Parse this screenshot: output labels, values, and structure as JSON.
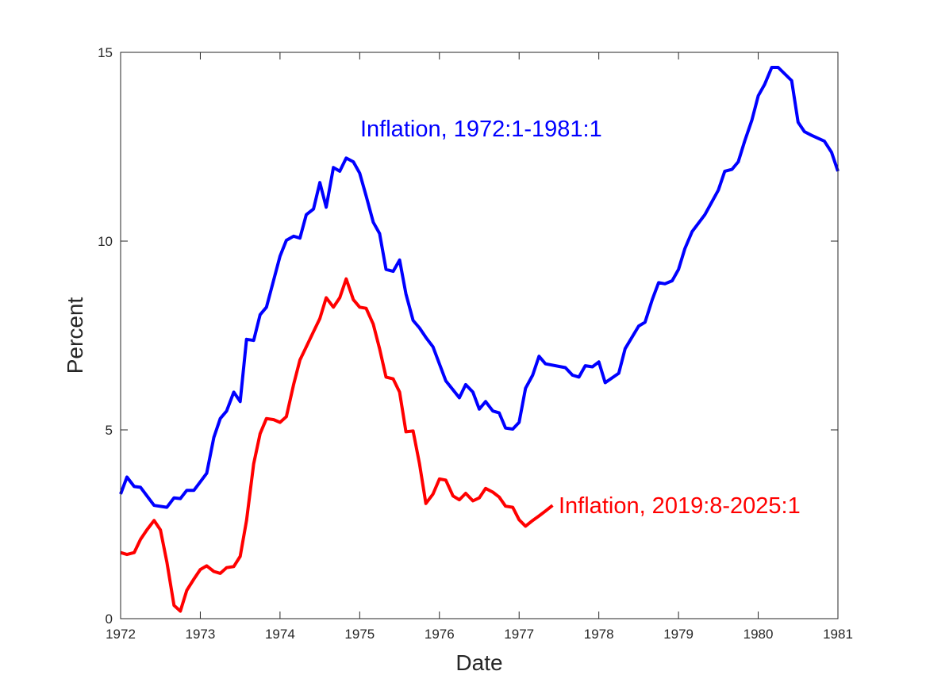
{
  "chart_data": {
    "type": "line",
    "xlabel": "Date",
    "ylabel": "Percent",
    "xlim": [
      1972,
      1981
    ],
    "ylim": [
      0,
      15
    ],
    "xticks": [
      "1972",
      "1973",
      "1974",
      "1975",
      "1976",
      "1977",
      "1978",
      "1979",
      "1980",
      "1981"
    ],
    "yticks": [
      "0",
      "5",
      "10",
      "15"
    ],
    "grid": false,
    "series": [
      {
        "name": "Inflation, 1972:1-1981:1",
        "color": "#0000ff",
        "x": [
          1972.0,
          1972.08,
          1972.17,
          1972.25,
          1972.42,
          1972.58,
          1972.67,
          1972.75,
          1972.83,
          1972.92,
          1973.08,
          1973.17,
          1973.25,
          1973.33,
          1973.42,
          1973.5,
          1973.58,
          1973.67,
          1973.75,
          1973.83,
          1974.0,
          1974.08,
          1974.17,
          1974.25,
          1974.33,
          1974.42,
          1974.5,
          1974.58,
          1974.67,
          1974.75,
          1974.83,
          1974.92,
          1975.0,
          1975.08,
          1975.17,
          1975.25,
          1975.33,
          1975.42,
          1975.5,
          1975.58,
          1975.67,
          1975.75,
          1975.83,
          1975.92,
          1976.08,
          1976.25,
          1976.33,
          1976.42,
          1976.5,
          1976.58,
          1976.67,
          1976.75,
          1976.83,
          1976.92,
          1977.0,
          1977.08,
          1977.17,
          1977.25,
          1977.33,
          1977.58,
          1977.67,
          1977.75,
          1977.83,
          1977.92,
          1978.0,
          1978.08,
          1978.25,
          1978.33,
          1978.5,
          1978.58,
          1978.67,
          1978.75,
          1978.83,
          1978.92,
          1979.0,
          1979.08,
          1979.17,
          1979.33,
          1979.5,
          1979.58,
          1979.67,
          1979.75,
          1979.83,
          1979.92,
          1980.0,
          1980.08,
          1980.17,
          1980.25,
          1980.42,
          1980.5,
          1980.58,
          1980.67,
          1980.83,
          1980.92,
          1981.0
        ],
        "values": [
          3.3,
          3.75,
          3.5,
          3.48,
          3.0,
          2.95,
          3.2,
          3.18,
          3.4,
          3.4,
          3.85,
          4.8,
          5.3,
          5.5,
          6.0,
          5.75,
          7.4,
          7.37,
          8.05,
          8.25,
          9.6,
          10.02,
          10.13,
          10.08,
          10.7,
          10.85,
          11.55,
          10.9,
          11.95,
          11.85,
          12.2,
          12.1,
          11.8,
          11.2,
          10.5,
          10.2,
          9.25,
          9.2,
          9.5,
          8.6,
          7.9,
          7.7,
          7.45,
          7.2,
          6.3,
          5.85,
          6.2,
          6.0,
          5.55,
          5.75,
          5.5,
          5.45,
          5.05,
          5.02,
          5.2,
          6.1,
          6.45,
          6.95,
          6.75,
          6.65,
          6.45,
          6.4,
          6.7,
          6.67,
          6.8,
          6.25,
          6.5,
          7.15,
          7.75,
          7.85,
          8.45,
          8.9,
          8.87,
          8.95,
          9.25,
          9.8,
          10.25,
          10.7,
          11.35,
          11.85,
          11.9,
          12.1,
          12.65,
          13.2,
          13.85,
          14.15,
          14.6,
          14.6,
          14.25,
          13.15,
          12.9,
          12.8,
          12.65,
          12.35,
          11.85
        ]
      },
      {
        "name": "Inflation, 2019:8-2025:1",
        "color": "#ff0000",
        "x": [
          1972.0,
          1972.08,
          1972.17,
          1972.25,
          1972.33,
          1972.42,
          1972.5,
          1972.58,
          1972.67,
          1972.75,
          1972.83,
          1972.92,
          1973.0,
          1973.08,
          1973.17,
          1973.25,
          1973.33,
          1973.42,
          1973.5,
          1973.58,
          1973.67,
          1973.75,
          1973.83,
          1973.92,
          1974.0,
          1974.08,
          1974.17,
          1974.25,
          1974.33,
          1974.42,
          1974.5,
          1974.58,
          1974.67,
          1974.75,
          1974.83,
          1974.92,
          1975.0,
          1975.08,
          1975.17,
          1975.25,
          1975.33,
          1975.42,
          1975.5,
          1975.58,
          1975.67,
          1975.75,
          1975.83,
          1975.92,
          1976.0,
          1976.08,
          1976.17,
          1976.25,
          1976.33,
          1976.42,
          1976.5,
          1976.58,
          1976.67,
          1976.75,
          1976.83,
          1976.92,
          1977.0,
          1977.08,
          1977.17,
          1977.25,
          1977.33,
          1977.42
        ],
        "values": [
          1.75,
          1.7,
          1.75,
          2.1,
          2.35,
          2.6,
          2.35,
          1.5,
          0.35,
          0.2,
          0.75,
          1.05,
          1.3,
          1.4,
          1.25,
          1.2,
          1.35,
          1.38,
          1.65,
          2.6,
          4.1,
          4.9,
          5.3,
          5.27,
          5.2,
          5.35,
          6.2,
          6.85,
          7.2,
          7.6,
          7.95,
          8.5,
          8.25,
          8.5,
          9.0,
          8.45,
          8.25,
          8.22,
          7.8,
          7.15,
          6.4,
          6.35,
          6.0,
          4.95,
          4.97,
          4.1,
          3.05,
          3.3,
          3.7,
          3.67,
          3.25,
          3.15,
          3.32,
          3.12,
          3.2,
          3.45,
          3.35,
          3.22,
          2.98,
          2.95,
          2.62,
          2.45,
          2.6,
          2.72,
          2.85,
          3.0
        ]
      }
    ],
    "annotations": [
      {
        "text": "Inflation, 1972:1-1981:1",
        "color": "#0000ff"
      },
      {
        "text": "Inflation, 2019:8-2025:1",
        "color": "#ff0000"
      }
    ]
  }
}
